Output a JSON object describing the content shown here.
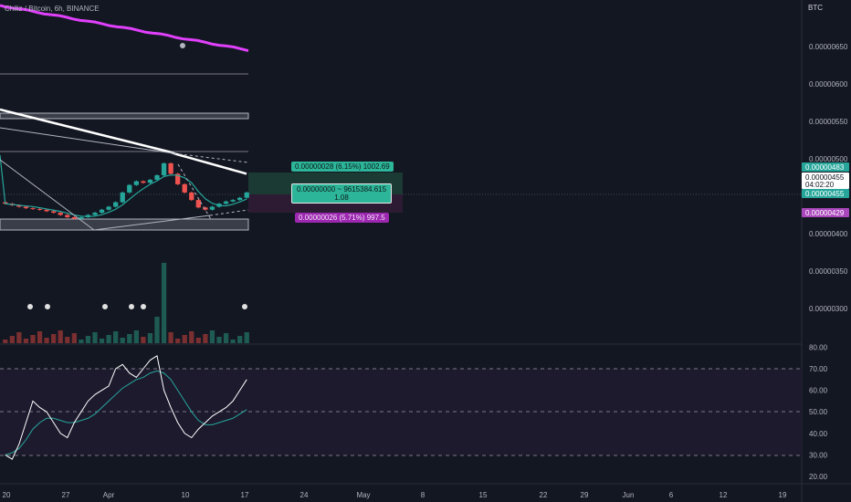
{
  "title": "Chiliz / Bitcoin, 6h, BINANCE",
  "currency": "BTC",
  "price_axis": {
    "ticks": [
      "0.00000650",
      "0.00000600",
      "0.00000550",
      "0.00000500",
      "0.00000400",
      "0.00000350",
      "0.00000300"
    ],
    "tags": [
      {
        "value": "0.00000483",
        "color": "#26a69a"
      },
      {
        "value": "0.00000455",
        "color": "#ffffff"
      },
      {
        "value": "04:02:20",
        "color": "#ffffff"
      },
      {
        "value": "0.00000455",
        "color": "#26a69a"
      },
      {
        "value": "0.00000429",
        "color": "#ab47bc"
      }
    ]
  },
  "rsi_axis": {
    "ticks": [
      "80.00",
      "70.00",
      "60.00",
      "50.00",
      "40.00",
      "30.00",
      "20.00"
    ]
  },
  "time_axis": {
    "ticks": [
      "20",
      "27",
      "Apr",
      "10",
      "17",
      "24",
      "May",
      "8",
      "15",
      "22",
      "29",
      "Jun",
      "6",
      "12",
      "19"
    ]
  },
  "position_tool": {
    "target": "0.00000028 (6.15%) 1002.69",
    "center_line1": "0.00000000 ~ 9615384.615",
    "center_line2": "1.08",
    "stop": "0.00000026 (5.71%) 997.5"
  },
  "colors": {
    "background": "#131722",
    "up": "#26a69a",
    "down": "#ef5350",
    "ma_long": "#e040fb",
    "ma_mid": "#ffffff",
    "ma_short": "#26a69a",
    "rsi": "#ffffff",
    "rsi_ma": "#26a69a"
  },
  "chart_data": {
    "type": "candlestick",
    "title": "Chiliz / Bitcoin, 6h, BINANCE",
    "ylabel": "BTC",
    "price_range": [
      2.75e-06,
      6.7e-06
    ],
    "close": [
      4.4e-06,
      4.38e-06,
      4.36e-06,
      4.34e-06,
      4.33e-06,
      4.32e-06,
      4.3e-06,
      4.28e-06,
      4.25e-06,
      4.22e-06,
      4.2e-06,
      4.22e-06,
      4.25e-06,
      4.28e-06,
      4.32e-06,
      4.36e-06,
      4.42e-06,
      4.55e-06,
      4.65e-06,
      4.7e-06,
      4.68e-06,
      4.72e-06,
      4.78e-06,
      4.94e-06,
      4.8e-06,
      4.66e-06,
      4.55e-06,
      4.45e-06,
      4.35e-06,
      4.32e-06,
      4.36e-06,
      4.4e-06,
      4.43e-06,
      4.45e-06,
      4.48e-06,
      4.55e-06
    ],
    "rsi": {
      "ylim": [
        20,
        80
      ],
      "levels": [
        70,
        50,
        30
      ],
      "values": [
        30,
        28,
        35,
        45,
        55,
        52,
        50,
        45,
        40,
        38,
        45,
        50,
        55,
        58,
        60,
        62,
        70,
        72,
        68,
        66,
        70,
        74,
        76,
        60,
        52,
        45,
        40,
        38,
        42,
        45,
        48,
        50,
        52,
        55,
        60,
        65
      ],
      "ma": [
        30,
        31,
        33,
        37,
        42,
        45,
        47,
        47,
        46,
        45,
        45,
        46,
        47,
        49,
        52,
        55,
        58,
        61,
        63,
        65,
        66,
        68,
        69,
        68,
        65,
        60,
        55,
        50,
        46,
        44,
        44,
        45,
        46,
        47,
        49,
        51
      ]
    }
  }
}
